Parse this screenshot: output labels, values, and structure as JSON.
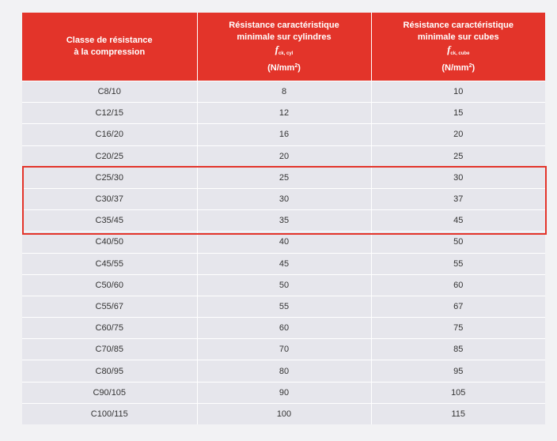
{
  "header": {
    "col1_line1": "Classe de résistance",
    "col1_line2": "à la compression",
    "col2_line1": "Résistance caractéristique",
    "col2_line2": "minimale sur cylindres",
    "col2_symbol": "f",
    "col2_subscript": "ck, cyl",
    "col2_unit_prefix": "(N/mm",
    "col2_unit_exp": "2",
    "col2_unit_suffix": ")",
    "col3_line1": "Résistance caractéristique",
    "col3_line2": "minimale sur cubes",
    "col3_symbol": "f",
    "col3_subscript": "ck, cube",
    "col3_unit_prefix": "(N/mm",
    "col3_unit_exp": "2",
    "col3_unit_suffix": ")"
  },
  "rows": [
    {
      "classe": "C8/10",
      "cyl": "8",
      "cube": "10"
    },
    {
      "classe": "C12/15",
      "cyl": "12",
      "cube": "15"
    },
    {
      "classe": "C16/20",
      "cyl": "16",
      "cube": "20"
    },
    {
      "classe": "C20/25",
      "cyl": "20",
      "cube": "25"
    },
    {
      "classe": "C25/30",
      "cyl": "25",
      "cube": "30"
    },
    {
      "classe": "C30/37",
      "cyl": "30",
      "cube": "37"
    },
    {
      "classe": "C35/45",
      "cyl": "35",
      "cube": "45"
    },
    {
      "classe": "C40/50",
      "cyl": "40",
      "cube": "50"
    },
    {
      "classe": "C45/55",
      "cyl": "45",
      "cube": "55"
    },
    {
      "classe": "C50/60",
      "cyl": "50",
      "cube": "60"
    },
    {
      "classe": "C55/67",
      "cyl": "55",
      "cube": "67"
    },
    {
      "classe": "C60/75",
      "cyl": "60",
      "cube": "75"
    },
    {
      "classe": "C70/85",
      "cyl": "70",
      "cube": "85"
    },
    {
      "classe": "C80/95",
      "cyl": "80",
      "cube": "95"
    },
    {
      "classe": "C90/105",
      "cyl": "90",
      "cube": "105"
    },
    {
      "classe": "C100/115",
      "cyl": "100",
      "cube": "115"
    }
  ],
  "colors": {
    "header_bg": "#e3342a",
    "row_bg": "#e6e6ec",
    "highlight_border": "#e3342a"
  }
}
